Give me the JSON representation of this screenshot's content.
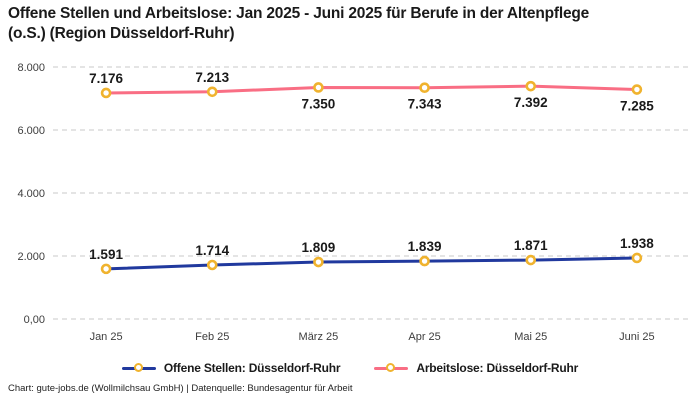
{
  "header": {
    "title_line1": "Offene Stellen und Arbeitslose: Jan 2025 - Juni 2025 für Berufe in der Altenpflege",
    "title_line2": "(o.S.) (Region Düsseldorf-Ruhr)"
  },
  "footer": {
    "source_text": "Chart: gute-jobs.de (Wollmilchsau GmbH) | Datenquelle: Bundesagentur für Arbeit"
  },
  "chart_data": {
    "type": "line",
    "title": "Offene Stellen und Arbeitslose: Jan 2025 - Juni 2025 für Berufe in der Altenpflege (o.S.) (Region Düsseldorf-Ruhr)",
    "categories": [
      "Jan 25",
      "Feb 25",
      "März 25",
      "Apr 25",
      "Mai 25",
      "Juni 25"
    ],
    "series": [
      {
        "name": "Offene Stellen: Düsseldorf-Ruhr",
        "color": "#21399e",
        "values": [
          1591,
          1714,
          1809,
          1839,
          1871,
          1938
        ],
        "labels": [
          "1.591",
          "1.714",
          "1.809",
          "1.839",
          "1.871",
          "1.938"
        ],
        "label_positions": [
          "above",
          "above",
          "above",
          "above",
          "above",
          "above"
        ]
      },
      {
        "name": "Arbeitslose: Düsseldorf-Ruhr",
        "color": "#f96e84",
        "values": [
          7176,
          7213,
          7350,
          7343,
          7392,
          7285
        ],
        "labels": [
          "7.176",
          "7.213",
          "7.350",
          "7.343",
          "7.392",
          "7.285"
        ],
        "label_positions": [
          "above",
          "above",
          "below",
          "below",
          "below",
          "below"
        ]
      }
    ],
    "y_ticks": [
      {
        "value": 0,
        "label": "0,00"
      },
      {
        "value": 2000,
        "label": "2.000"
      },
      {
        "value": 4000,
        "label": "4.000"
      },
      {
        "value": 6000,
        "label": "6.000"
      },
      {
        "value": 8000,
        "label": "8.000"
      }
    ],
    "ylim": [
      0,
      8000
    ],
    "xlabel": "",
    "ylabel": "",
    "grid": "horizontal-dashed",
    "legend_position": "bottom",
    "colors": {
      "grid_line": "#c9c9c9",
      "axis_label": "#3d3d3d",
      "data_label": "#1a1a1a",
      "marker_fill": "#ffffff",
      "marker_stroke": "#f0b32e"
    }
  }
}
